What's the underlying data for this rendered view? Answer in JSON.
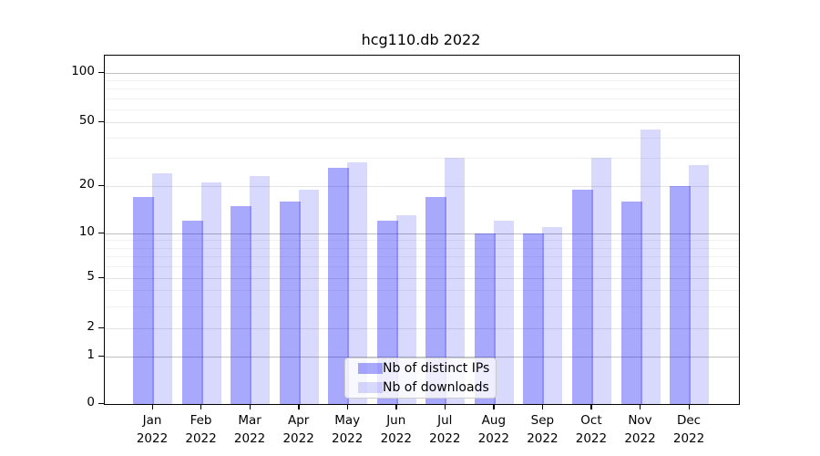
{
  "chart_data": {
    "type": "bar",
    "title": "hcg110.db 2022",
    "categories": [
      "Jan 2022",
      "Feb 2022",
      "Mar 2022",
      "Apr 2022",
      "May 2022",
      "Jun 2022",
      "Jul 2022",
      "Aug 2022",
      "Sep 2022",
      "Oct 2022",
      "Nov 2022",
      "Dec 2022"
    ],
    "x_tick_top_labels": [
      "Jan",
      "Feb",
      "Mar",
      "Apr",
      "May",
      "Jun",
      "Jul",
      "Aug",
      "Sep",
      "Oct",
      "Nov",
      "Dec"
    ],
    "x_tick_bottom_label": "2022",
    "series": [
      {
        "name": "Nb of distinct IPs",
        "color": "rgba(0,0,250,0.34)",
        "values": [
          17,
          12,
          15,
          16,
          26,
          12,
          17,
          10,
          10,
          19,
          16,
          20
        ]
      },
      {
        "name": "Nb of downloads",
        "color": "rgba(0,0,250,0.15)",
        "values": [
          24,
          21,
          23,
          19,
          28,
          13,
          30,
          12,
          11,
          30,
          45,
          27
        ]
      }
    ],
    "yscale": "symlog",
    "ylim": [
      0,
      128
    ],
    "yticks": [
      100,
      50,
      20,
      10,
      5,
      2,
      1,
      0
    ],
    "ytick_labels": [
      "100",
      "50",
      "20",
      "10",
      "5",
      "2",
      "1",
      "0"
    ],
    "grid_major_values": [
      1,
      10,
      100
    ],
    "grid_mid_values": [
      2,
      5,
      20,
      50
    ],
    "grid_minor_values": [
      3,
      4,
      6,
      7,
      8,
      9,
      30,
      40,
      60,
      70,
      80,
      90
    ],
    "legend": {
      "position": "lower center"
    },
    "colors": {
      "background": "#ffffff",
      "axis": "#000000",
      "grid_major": "#bfbfbf",
      "grid_mid": "#e4e4e4",
      "grid_minor": "#f1f1f1"
    }
  }
}
